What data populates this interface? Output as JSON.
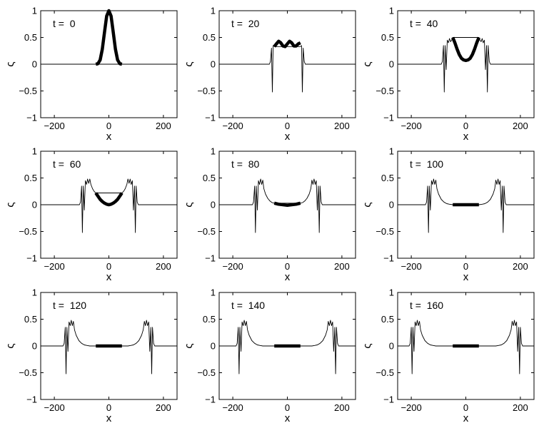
{
  "figure": {
    "rows": 3,
    "cols": 3,
    "line_color": "#000000",
    "background": "#ffffff"
  },
  "chart_data": [
    {
      "type": "line",
      "label": "t =  0",
      "xlabel": "x",
      "ylabel": "ς",
      "xlim": [
        -250,
        250
      ],
      "ylim": [
        -1,
        1
      ],
      "xticks": [
        -200,
        0,
        200
      ],
      "yticks": [
        -1,
        -0.5,
        0,
        0.5,
        1
      ],
      "xtick_labels": [
        "−200",
        "0",
        "200"
      ],
      "ytick_labels": [
        "−1",
        "−0.5",
        "0",
        "0.5",
        "1"
      ],
      "thin_series": {
        "x": [
          -250,
          250
        ],
        "y": [
          0,
          0
        ]
      },
      "thick_series": {
        "x": [
          -48,
          -40,
          -32,
          -24,
          -16,
          -8,
          0,
          8,
          16,
          24,
          32,
          40,
          48
        ],
        "y": [
          0.0,
          0.01,
          0.08,
          0.28,
          0.6,
          0.9,
          1.0,
          0.9,
          0.6,
          0.28,
          0.08,
          0.01,
          0.0
        ]
      }
    },
    {
      "type": "line",
      "label": "t =  20",
      "xlabel": "x",
      "ylabel": "ς",
      "xlim": [
        -250,
        250
      ],
      "ylim": [
        -1,
        1
      ],
      "xticks": [
        -200,
        0,
        200
      ],
      "yticks": [
        -1,
        -0.5,
        0,
        0.5,
        1
      ],
      "xtick_labels": [
        "−200",
        "0",
        "200"
      ],
      "ytick_labels": [
        "−1",
        "−0.5",
        "0",
        "0.5",
        "1"
      ],
      "thin_series": {
        "x": [
          -250,
          -66,
          -62,
          -58,
          -55,
          -52,
          -48,
          48,
          52,
          55,
          58,
          62,
          66,
          250
        ],
        "y": [
          0,
          0,
          0.05,
          0.3,
          -0.52,
          0.35,
          0.33,
          0.33,
          0.35,
          -0.52,
          0.3,
          0.05,
          0,
          0
        ]
      },
      "thick_series": {
        "x": [
          -48,
          -40,
          -32,
          -24,
          -16,
          -8,
          0,
          8,
          16,
          24,
          32,
          40,
          48
        ],
        "y": [
          0.33,
          0.38,
          0.43,
          0.4,
          0.34,
          0.33,
          0.38,
          0.43,
          0.4,
          0.34,
          0.34,
          0.38,
          0.4
        ]
      }
    },
    {
      "type": "line",
      "label": "t =  40",
      "xlabel": "x",
      "ylabel": "ς",
      "xlim": [
        -250,
        250
      ],
      "ylim": [
        -1,
        1
      ],
      "xticks": [
        -200,
        0,
        200
      ],
      "yticks": [
        -1,
        -0.5,
        0,
        0.5,
        1
      ],
      "xtick_labels": [
        "−200",
        "0",
        "200"
      ],
      "ytick_labels": [
        "−1",
        "−0.5",
        "0",
        "0.5",
        "1"
      ],
      "thin_series": {
        "x": [
          -250,
          -90,
          -86,
          -82,
          -79,
          -76,
          -72,
          -68,
          -64,
          -60,
          -56,
          -52,
          -48,
          48,
          52,
          56,
          60,
          64,
          68,
          72,
          76,
          79,
          82,
          86,
          90,
          250
        ],
        "y": [
          0,
          0,
          0.05,
          0.35,
          -0.52,
          0.35,
          -0.1,
          0.45,
          0.4,
          0.48,
          0.42,
          0.45,
          0.5,
          0.5,
          0.45,
          0.42,
          0.48,
          0.4,
          0.45,
          -0.1,
          0.35,
          -0.52,
          0.35,
          0.05,
          0,
          0
        ]
      },
      "thick_series": {
        "x": [
          -48,
          -40,
          -32,
          -24,
          -16,
          -8,
          0,
          8,
          16,
          24,
          32,
          40,
          48
        ],
        "y": [
          0.5,
          0.4,
          0.28,
          0.18,
          0.11,
          0.08,
          0.07,
          0.08,
          0.11,
          0.18,
          0.28,
          0.4,
          0.5
        ]
      }
    },
    {
      "type": "line",
      "label": "t =  60",
      "xlabel": "x",
      "ylabel": "ς",
      "xlim": [
        -250,
        250
      ],
      "ylim": [
        -1,
        1
      ],
      "xticks": [
        -200,
        0,
        200
      ],
      "yticks": [
        -1,
        -0.5,
        0,
        0.5,
        1
      ],
      "xtick_labels": [
        "−200",
        "0",
        "200"
      ],
      "ytick_labels": [
        "−1",
        "−0.5",
        "0",
        "0.5",
        "1"
      ],
      "thin_series": {
        "x": [
          -250,
          -108,
          -104,
          -100,
          -97,
          -94,
          -90,
          -86,
          -82,
          -78,
          -74,
          -70,
          -66,
          -60,
          -54,
          -48,
          48,
          54,
          60,
          66,
          70,
          74,
          78,
          82,
          86,
          90,
          94,
          97,
          100,
          104,
          108,
          250
        ],
        "y": [
          0,
          0,
          0.05,
          0.35,
          -0.52,
          0.35,
          -0.1,
          0.45,
          0.38,
          0.48,
          0.4,
          0.48,
          0.38,
          0.3,
          0.25,
          0.22,
          0.22,
          0.25,
          0.3,
          0.38,
          0.48,
          0.4,
          0.48,
          0.38,
          0.45,
          -0.1,
          0.35,
          -0.52,
          0.35,
          0.05,
          0,
          0
        ]
      },
      "thick_series": {
        "x": [
          -48,
          -40,
          -32,
          -24,
          -16,
          -8,
          0,
          8,
          16,
          24,
          32,
          40,
          48
        ],
        "y": [
          0.22,
          0.16,
          0.1,
          0.06,
          0.03,
          0.01,
          0.0,
          0.01,
          0.03,
          0.06,
          0.1,
          0.16,
          0.22
        ]
      }
    },
    {
      "type": "line",
      "label": "t =  80",
      "xlabel": "x",
      "ylabel": "ς",
      "xlim": [
        -250,
        250
      ],
      "ylim": [
        -1,
        1
      ],
      "xticks": [
        -200,
        0,
        200
      ],
      "yticks": [
        -1,
        -0.5,
        0,
        0.5,
        1
      ],
      "xtick_labels": [
        "−200",
        "0",
        "200"
      ],
      "ytick_labels": [
        "−1",
        "−0.5",
        "0",
        "0.5",
        "1"
      ],
      "thin_series": {
        "x": [
          -250,
          -128,
          -124,
          -120,
          -117,
          -114,
          -110,
          -106,
          -102,
          -98,
          -94,
          -90,
          -86,
          -80,
          -72,
          -64,
          -56,
          -48,
          48,
          56,
          64,
          72,
          80,
          86,
          90,
          94,
          98,
          102,
          106,
          110,
          114,
          117,
          120,
          124,
          128,
          250
        ],
        "y": [
          0,
          0,
          0.05,
          0.35,
          -0.52,
          0.35,
          -0.1,
          0.45,
          0.38,
          0.48,
          0.38,
          0.46,
          0.3,
          0.2,
          0.12,
          0.07,
          0.04,
          0.03,
          0.03,
          0.04,
          0.07,
          0.12,
          0.2,
          0.3,
          0.46,
          0.38,
          0.48,
          0.38,
          0.45,
          -0.1,
          0.35,
          -0.52,
          0.35,
          0.05,
          0,
          0
        ]
      },
      "thick_series": {
        "x": [
          -48,
          -32,
          -16,
          0,
          16,
          32,
          48
        ],
        "y": [
          0.03,
          0.01,
          0.0,
          -0.01,
          0.0,
          0.01,
          0.03
        ]
      }
    },
    {
      "type": "line",
      "label": "t =  100",
      "xlabel": "x",
      "ylabel": "ς",
      "xlim": [
        -250,
        250
      ],
      "ylim": [
        -1,
        1
      ],
      "xticks": [
        -200,
        0,
        200
      ],
      "yticks": [
        -1,
        -0.5,
        0,
        0.5,
        1
      ],
      "xtick_labels": [
        "−200",
        "0",
        "200"
      ],
      "ytick_labels": [
        "−1",
        "−0.5",
        "0",
        "0.5",
        "1"
      ],
      "thin_series": {
        "x": [
          -250,
          -148,
          -144,
          -140,
          -137,
          -134,
          -130,
          -126,
          -122,
          -118,
          -114,
          -110,
          -106,
          -100,
          -90,
          -80,
          -70,
          -60,
          -48,
          48,
          60,
          70,
          80,
          90,
          100,
          106,
          110,
          114,
          118,
          122,
          126,
          130,
          134,
          137,
          140,
          144,
          148,
          250
        ],
        "y": [
          0,
          0,
          0.05,
          0.35,
          -0.52,
          0.35,
          -0.1,
          0.45,
          0.38,
          0.48,
          0.38,
          0.46,
          0.3,
          0.2,
          0.1,
          0.05,
          0.02,
          0.01,
          0.0,
          0.0,
          0.01,
          0.02,
          0.05,
          0.1,
          0.2,
          0.3,
          0.46,
          0.38,
          0.48,
          0.38,
          0.45,
          -0.1,
          0.35,
          -0.52,
          0.35,
          0.05,
          0,
          0
        ]
      },
      "thick_series": {
        "x": [
          -48,
          48
        ],
        "y": [
          0.0,
          0.0
        ]
      }
    },
    {
      "type": "line",
      "label": "t =  120",
      "xlabel": "x",
      "ylabel": "ς",
      "xlim": [
        -250,
        250
      ],
      "ylim": [
        -1,
        1
      ],
      "xticks": [
        -200,
        0,
        200
      ],
      "yticks": [
        -1,
        -0.5,
        0,
        0.5,
        1
      ],
      "xtick_labels": [
        "−200",
        "0",
        "200"
      ],
      "ytick_labels": [
        "−1",
        "−0.5",
        "0",
        "0.5",
        "1"
      ],
      "thin_series": {
        "x": [
          -250,
          -168,
          -164,
          -160,
          -157,
          -154,
          -150,
          -146,
          -142,
          -138,
          -134,
          -130,
          -126,
          -120,
          -110,
          -100,
          -90,
          -80,
          -70,
          -60,
          -48,
          48,
          60,
          70,
          80,
          90,
          100,
          110,
          120,
          126,
          130,
          134,
          138,
          142,
          146,
          150,
          154,
          157,
          160,
          164,
          168,
          250
        ],
        "y": [
          0,
          0,
          0.05,
          0.35,
          -0.52,
          0.35,
          -0.1,
          0.45,
          0.38,
          0.48,
          0.38,
          0.46,
          0.3,
          0.2,
          0.1,
          0.05,
          0.02,
          0.01,
          0.0,
          0.0,
          0.0,
          0.0,
          0.0,
          0.0,
          0.01,
          0.02,
          0.05,
          0.1,
          0.2,
          0.3,
          0.46,
          0.38,
          0.48,
          0.38,
          0.45,
          -0.1,
          0.35,
          -0.52,
          0.35,
          0.05,
          0,
          0
        ]
      },
      "thick_series": {
        "x": [
          -48,
          48
        ],
        "y": [
          0.0,
          0.0
        ]
      }
    },
    {
      "type": "line",
      "label": "t =  140",
      "xlabel": "x",
      "ylabel": "ς",
      "xlim": [
        -250,
        250
      ],
      "ylim": [
        -1,
        1
      ],
      "xticks": [
        -200,
        0,
        200
      ],
      "yticks": [
        -1,
        -0.5,
        0,
        0.5,
        1
      ],
      "xtick_labels": [
        "−200",
        "0",
        "200"
      ],
      "ytick_labels": [
        "−1",
        "−0.5",
        "0",
        "0.5",
        "1"
      ],
      "thin_series": {
        "x": [
          -250,
          -188,
          -184,
          -180,
          -177,
          -174,
          -170,
          -166,
          -162,
          -158,
          -154,
          -150,
          -146,
          -140,
          -130,
          -120,
          -110,
          -100,
          -90,
          -80,
          -70,
          -60,
          -48,
          48,
          60,
          70,
          80,
          90,
          100,
          110,
          120,
          130,
          140,
          146,
          150,
          154,
          158,
          162,
          166,
          170,
          174,
          177,
          180,
          184,
          188,
          250
        ],
        "y": [
          0,
          0,
          0.05,
          0.35,
          -0.52,
          0.35,
          -0.1,
          0.45,
          0.38,
          0.48,
          0.38,
          0.46,
          0.3,
          0.2,
          0.1,
          0.05,
          0.02,
          0.01,
          0.0,
          0.0,
          0.0,
          0.0,
          0.0,
          0.0,
          0.0,
          0.0,
          0.0,
          0.0,
          0.01,
          0.02,
          0.05,
          0.1,
          0.2,
          0.3,
          0.46,
          0.38,
          0.48,
          0.38,
          0.45,
          -0.1,
          0.35,
          -0.52,
          0.35,
          0.05,
          0,
          0
        ]
      },
      "thick_series": {
        "x": [
          -48,
          48
        ],
        "y": [
          0.0,
          0.0
        ]
      }
    },
    {
      "type": "line",
      "label": "t =  160",
      "xlabel": "x",
      "ylabel": "ς",
      "xlim": [
        -250,
        250
      ],
      "ylim": [
        -1,
        1
      ],
      "xticks": [
        -200,
        0,
        200
      ],
      "yticks": [
        -1,
        -0.5,
        0,
        0.5,
        1
      ],
      "xtick_labels": [
        "−200",
        "0",
        "200"
      ],
      "ytick_labels": [
        "−1",
        "−0.5",
        "0",
        "0.5",
        "1"
      ],
      "thin_series": {
        "x": [
          -250,
          -208,
          -204,
          -200,
          -197,
          -194,
          -190,
          -186,
          -182,
          -178,
          -174,
          -170,
          -166,
          -160,
          -150,
          -140,
          -130,
          -120,
          -110,
          -100,
          -90,
          -80,
          -70,
          -60,
          -48,
          48,
          60,
          70,
          80,
          90,
          100,
          110,
          120,
          130,
          140,
          150,
          160,
          166,
          170,
          174,
          178,
          182,
          186,
          190,
          194,
          197,
          200,
          204,
          208,
          250
        ],
        "y": [
          0,
          0,
          0.05,
          0.35,
          -0.52,
          0.35,
          -0.1,
          0.45,
          0.38,
          0.48,
          0.38,
          0.46,
          0.3,
          0.2,
          0.1,
          0.05,
          0.02,
          0.01,
          0.0,
          0.0,
          0.0,
          0.0,
          0.0,
          0.0,
          0.0,
          0.0,
          0.0,
          0.0,
          0.0,
          0.0,
          0.0,
          0.0,
          0.01,
          0.02,
          0.05,
          0.1,
          0.2,
          0.3,
          0.46,
          0.38,
          0.48,
          0.38,
          0.45,
          -0.1,
          0.35,
          -0.52,
          0.35,
          0.05,
          0,
          0
        ]
      },
      "thick_series": {
        "x": [
          -48,
          48
        ],
        "y": [
          0.0,
          0.0
        ]
      }
    }
  ]
}
